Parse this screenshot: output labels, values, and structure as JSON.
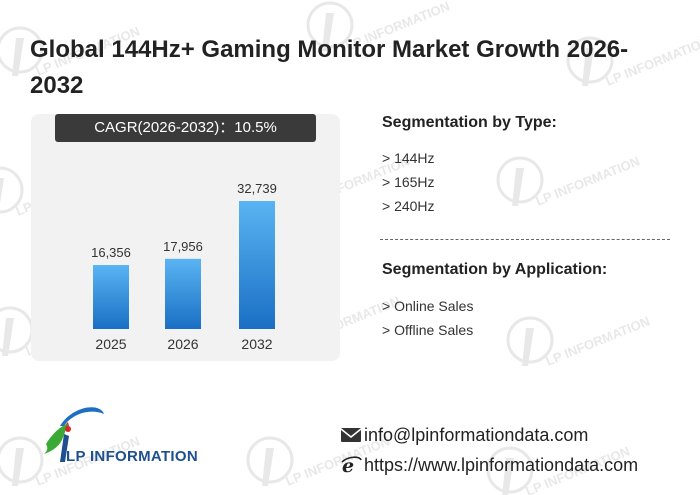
{
  "title": "Global 144Hz+ Gaming Monitor Market Growth 2026-2032",
  "cagr_label": "CAGR(2026-2032)：10.5%",
  "chart_data": {
    "type": "bar",
    "categories": [
      "2025",
      "2026",
      "2032"
    ],
    "values": [
      16356,
      17956,
      32739
    ],
    "value_labels": [
      "16,356",
      "17,956",
      "32,739"
    ],
    "title": "",
    "xlabel": "",
    "ylabel": "",
    "ylim": [
      0,
      40000
    ],
    "grid": false,
    "bar_color_top": "#5ab4f2",
    "bar_color_bottom": "#1a6fc4"
  },
  "segmentation_type": {
    "title": "Segmentation by Type:",
    "items": [
      "144Hz",
      "165Hz",
      "240Hz"
    ]
  },
  "segmentation_application": {
    "title": "Segmentation by Application:",
    "items": [
      "Online Sales",
      "Offline Sales"
    ]
  },
  "logo": {
    "text": "LP INFORMATION",
    "watermark_text": "LP INFORMATION",
    "brand_color": "#1f4f8f",
    "accent_green": "#3aa935",
    "accent_red": "#d9262c"
  },
  "contact": {
    "email": "info@lpinformationdata.com",
    "website": "https://www.lpinformationdata.com",
    "email_icon": "envelope-icon",
    "web_icon": "internet-explorer-icon"
  }
}
